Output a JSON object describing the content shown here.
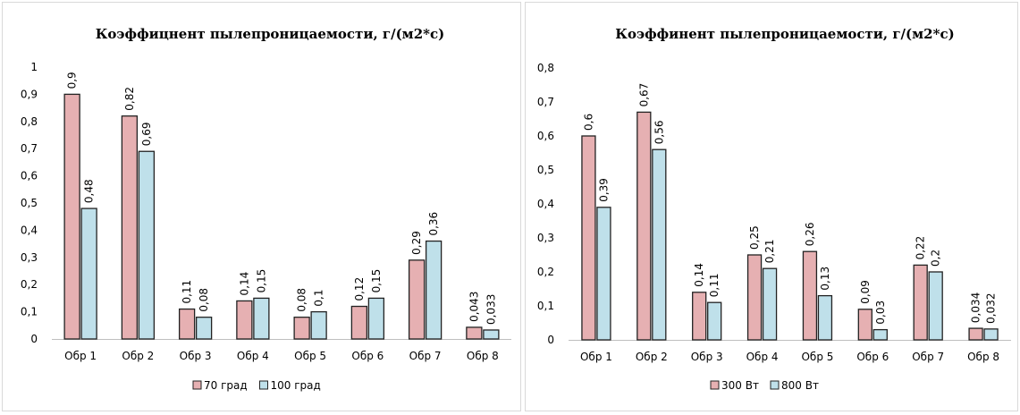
{
  "colors": {
    "series1": "#e6b0b2",
    "series2": "#bfe0ea",
    "bar_stroke": "#222222",
    "grid": "#d9d9d9",
    "axis": "#bfbfbf"
  },
  "chart_data": [
    {
      "type": "bar",
      "title": "Коэффицнент пылепроницаемости,  г/(м2*с)",
      "categories": [
        "Обр 1",
        "Обр 2",
        "Обр 3",
        "Обр 4",
        "Обр 5",
        "Обр 6",
        "Обр 7",
        "Обр 8"
      ],
      "series": [
        {
          "name": "70 град",
          "values": [
            0.9,
            0.82,
            0.11,
            0.14,
            0.08,
            0.12,
            0.29,
            0.043
          ],
          "labels": [
            "0,9",
            "0,82",
            "0,11",
            "0,14",
            "0,08",
            "0,12",
            "0,29",
            "0,043"
          ]
        },
        {
          "name": "100 град",
          "values": [
            0.48,
            0.69,
            0.08,
            0.15,
            0.1,
            0.15,
            0.36,
            0.033
          ],
          "labels": [
            "0,48",
            "0,69",
            "0,08",
            "0,15",
            "0,1",
            "0,15",
            "0,36",
            "0,033"
          ]
        }
      ],
      "ylim": [
        0,
        1
      ],
      "yticks": [
        "0",
        "0,1",
        "0,2",
        "0,3",
        "0,4",
        "0,5",
        "0,6",
        "0,7",
        "0,8",
        "0,9",
        "1"
      ],
      "legend_position": "bottom",
      "grid": false
    },
    {
      "type": "bar",
      "title": "Коэффинент пылепроницаемости, г/(м2*с)",
      "categories": [
        "Обр 1",
        "Обр 2",
        "Обр 3",
        "Обр 4",
        "Обр 5",
        "Обр 6",
        "Обр 7",
        "Обр 8"
      ],
      "series": [
        {
          "name": "300 Вт",
          "values": [
            0.6,
            0.67,
            0.14,
            0.25,
            0.26,
            0.09,
            0.22,
            0.034
          ],
          "labels": [
            "0,6",
            "0,67",
            "0,14",
            "0,25",
            "0,26",
            "0,09",
            "0,22",
            "0,034"
          ]
        },
        {
          "name": "800 Вт",
          "values": [
            0.39,
            0.56,
            0.11,
            0.21,
            0.13,
            0.03,
            0.2,
            0.032
          ],
          "labels": [
            "0,39",
            "0,56",
            "0,11",
            "0,21",
            "0,13",
            "0,03",
            "0,2",
            "0,032"
          ]
        }
      ],
      "ylim": [
        0,
        0.8
      ],
      "yticks": [
        "0",
        "0,1",
        "0,2",
        "0,3",
        "0,4",
        "0,5",
        "0,6",
        "0,7",
        "0,8"
      ],
      "legend_position": "bottom",
      "grid": false
    }
  ]
}
